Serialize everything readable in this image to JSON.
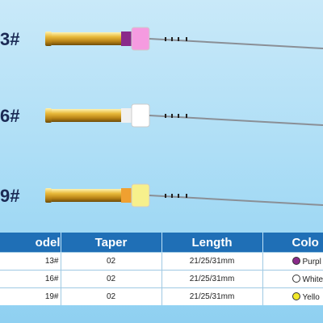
{
  "files": [
    {
      "label": "3#"
    },
    {
      "label": "6#"
    },
    {
      "label": "9#"
    }
  ],
  "table": {
    "header": [
      "odel",
      "Taper",
      "Length",
      "Colo"
    ],
    "rows": [
      [
        "13#",
        "02",
        "21/25/31mm",
        "Purpl"
      ],
      [
        "16#",
        "02",
        "21/25/31mm",
        "White"
      ],
      [
        "19#",
        "02",
        "21/25/31mm",
        "Yello"
      ]
    ]
  }
}
